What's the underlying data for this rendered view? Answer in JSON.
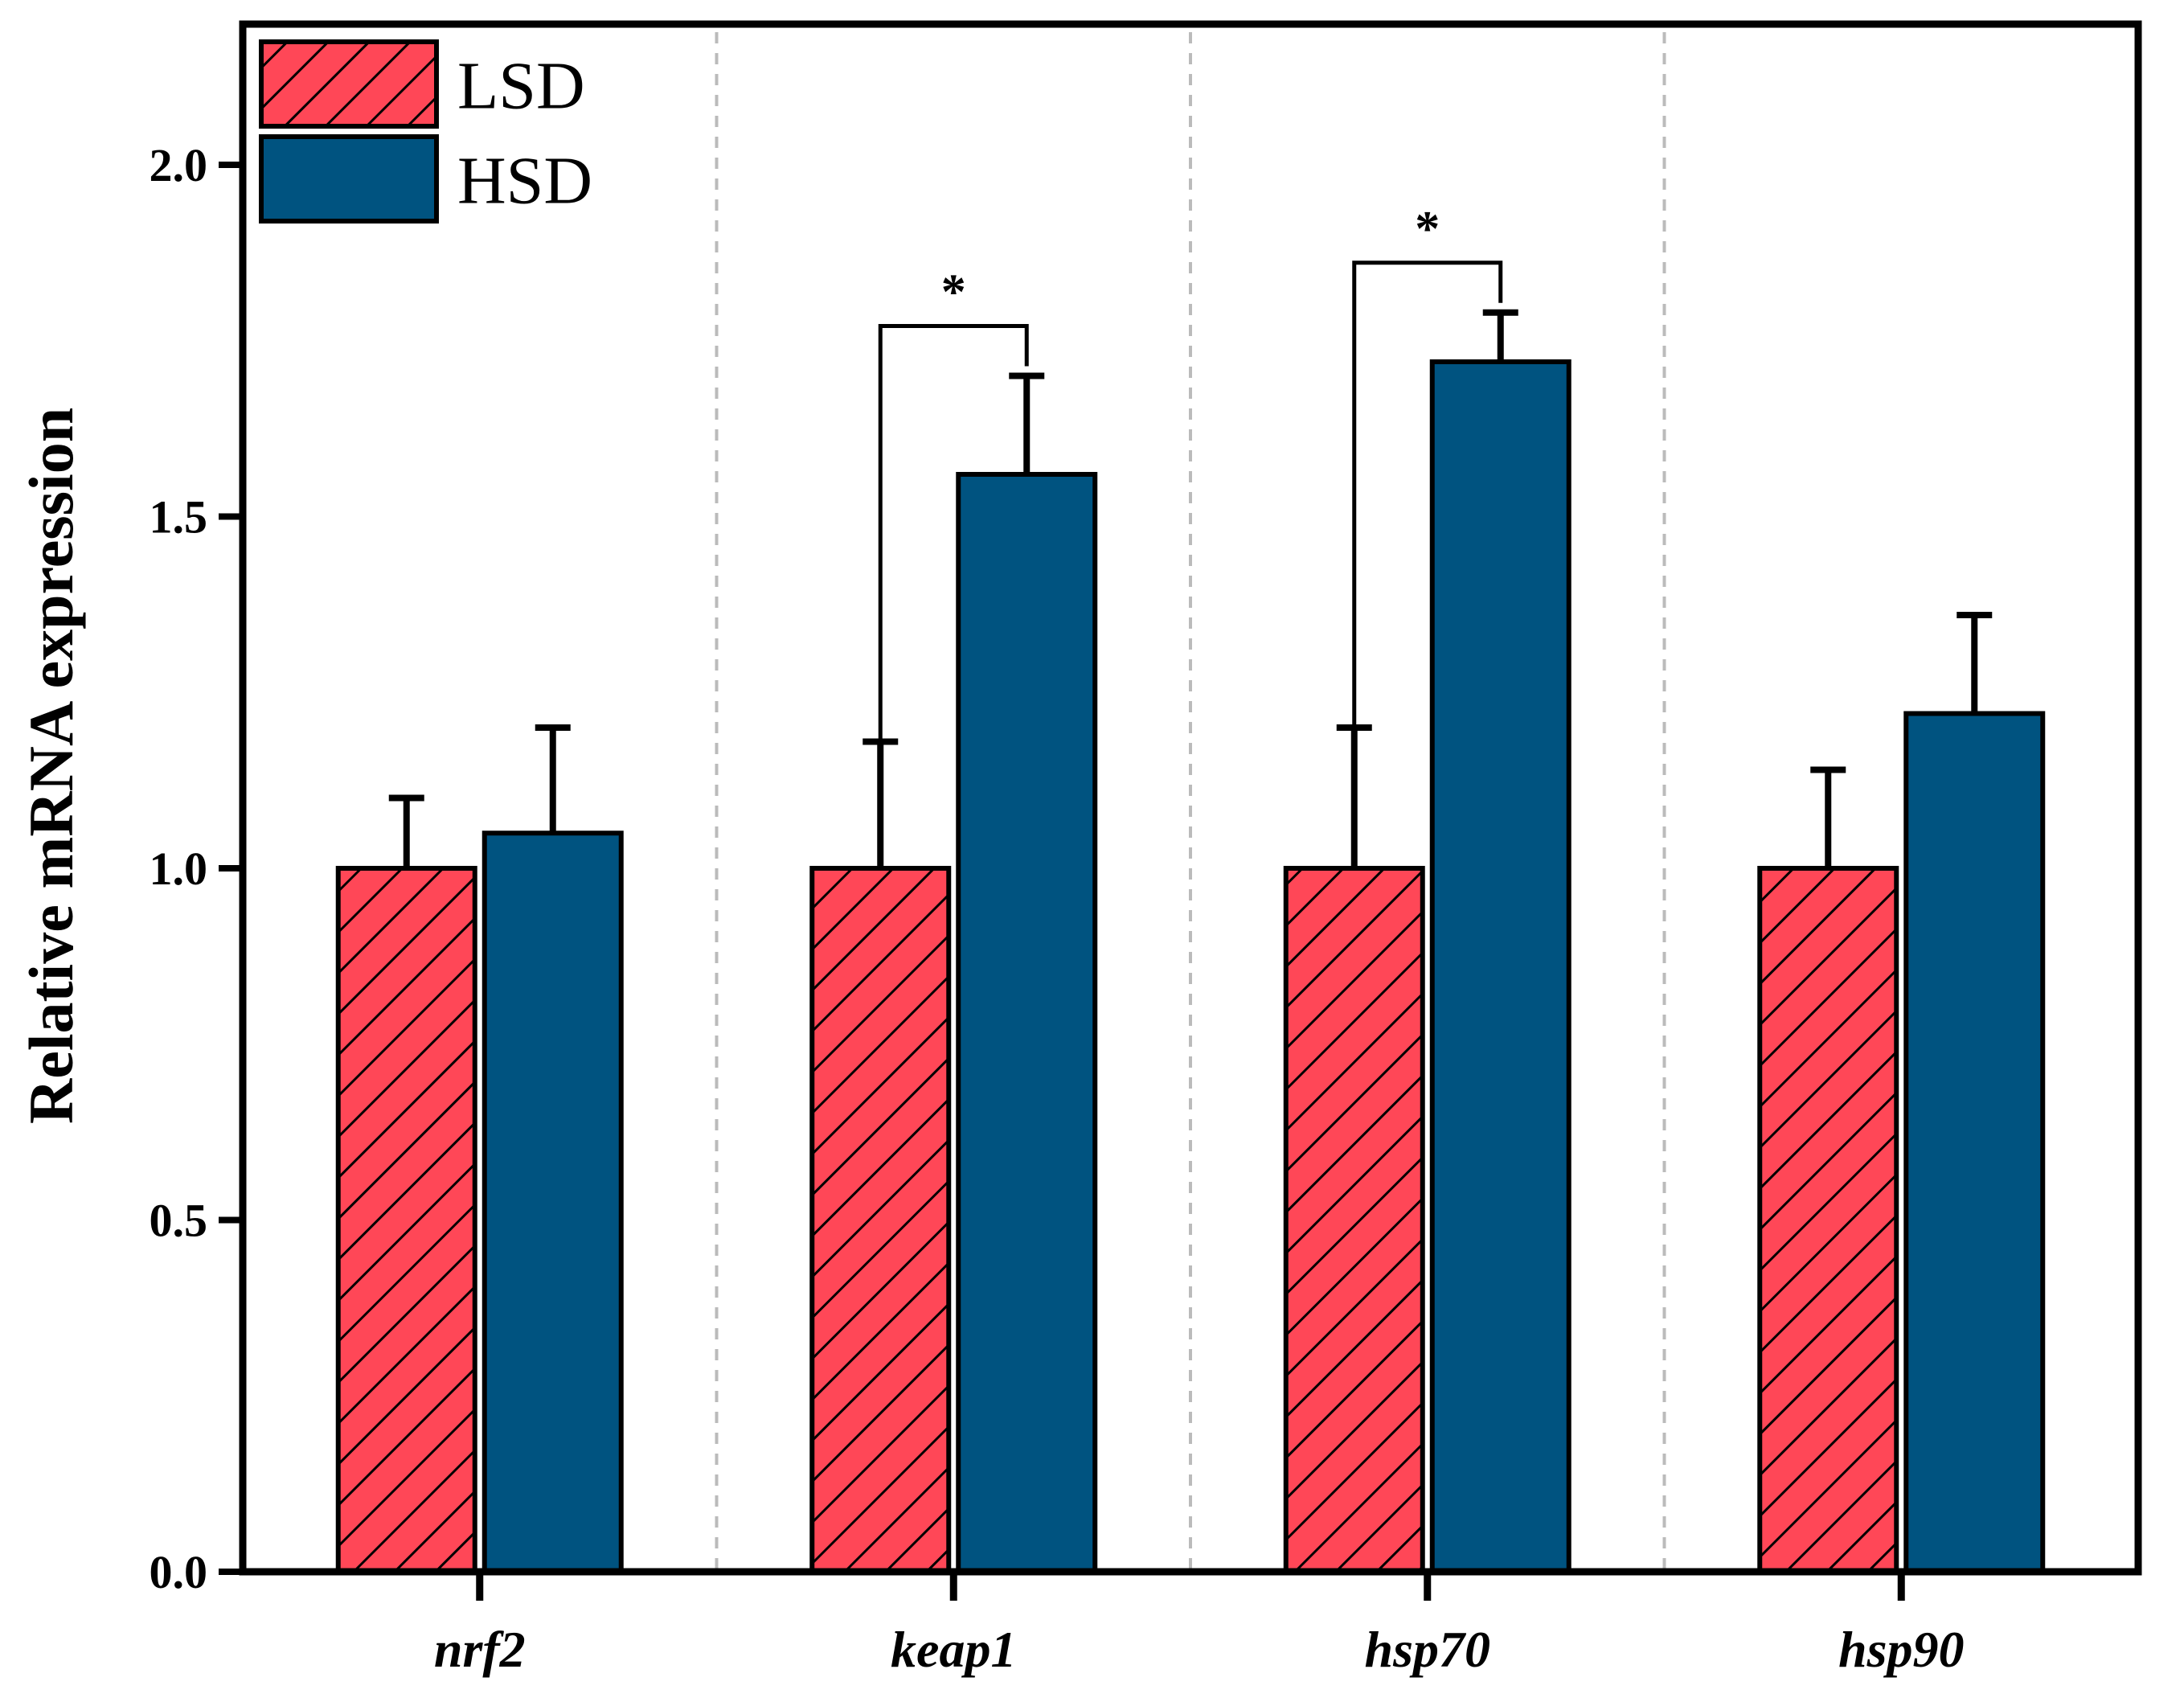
{
  "chart_data": {
    "type": "bar",
    "title": "",
    "xlabel": "",
    "ylabel": "Relative mRNA expression",
    "ylim": [
      0,
      2.2
    ],
    "yticks": [
      0.0,
      0.5,
      1.0,
      1.5,
      2.0
    ],
    "ytick_labels": [
      "0.0",
      "0.5",
      "1.0",
      "1.5",
      "2.0"
    ],
    "grid": false,
    "categories": [
      "nrf2",
      "keap1",
      "hsp70",
      "hsp90"
    ],
    "series": [
      {
        "name": "LSD",
        "color": "#ff4757",
        "pattern": "diagonal-hatch",
        "values": [
          1.0,
          1.0,
          1.0,
          1.0
        ],
        "errors": [
          0.1,
          0.18,
          0.2,
          0.14
        ]
      },
      {
        "name": "HSD",
        "color": "#005380",
        "pattern": "solid",
        "values": [
          1.05,
          1.56,
          1.72,
          1.22
        ],
        "errors": [
          0.15,
          0.14,
          0.07,
          0.14
        ]
      }
    ],
    "significance": [
      {
        "category": "keap1",
        "label": "*"
      },
      {
        "category": "hsp70",
        "label": "*"
      }
    ],
    "legend": {
      "position": "top-left",
      "entries": [
        "LSD",
        "HSD"
      ]
    },
    "category_separators": "dashed-gray"
  }
}
